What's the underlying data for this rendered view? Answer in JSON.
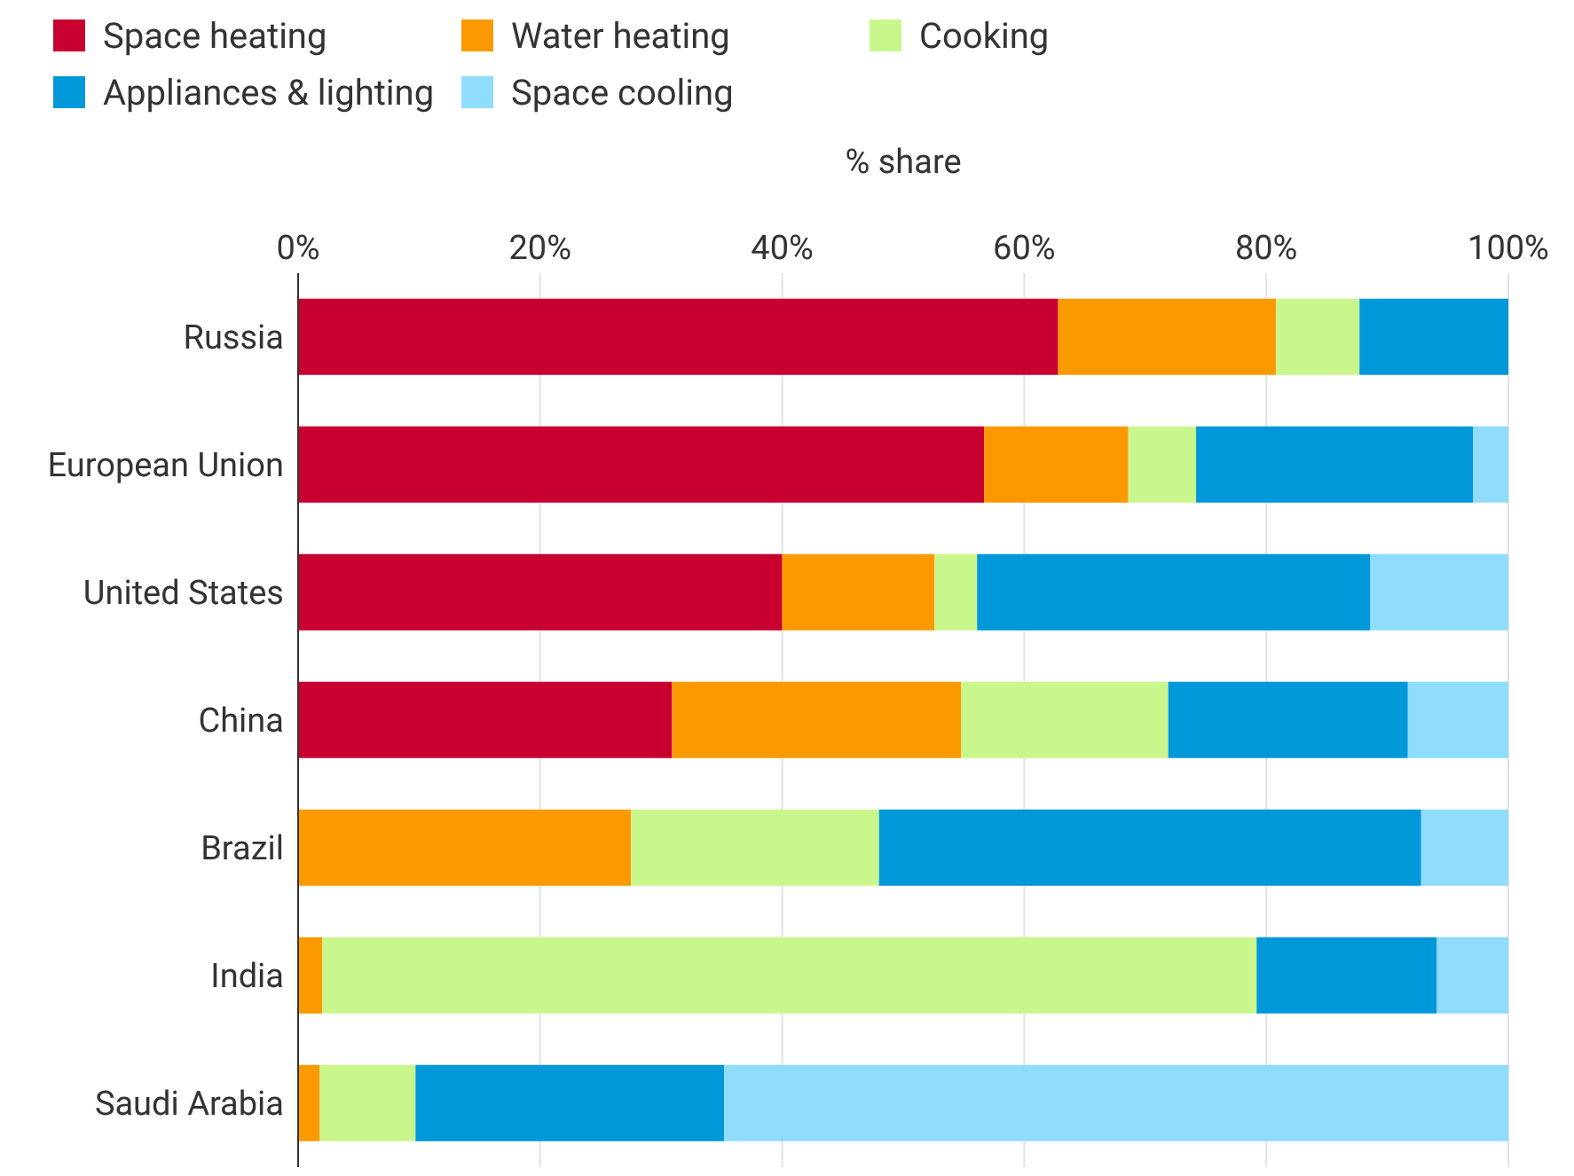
{
  "chart_data": {
    "type": "bar",
    "orientation": "horizontal",
    "stacked": true,
    "xlabel": "% share",
    "categories": [
      "Russia",
      "European Union",
      "United States",
      "China",
      "Brazil",
      "India",
      "Saudi Arabia"
    ],
    "series": [
      {
        "name": "Space heating",
        "color": "#c8002f",
        "values": [
          62.8,
          56.7,
          40.0,
          30.9,
          0,
          0,
          0
        ]
      },
      {
        "name": "Water heating",
        "color": "#fa9a00",
        "values": [
          18.0,
          11.9,
          12.6,
          23.9,
          27.5,
          2.0,
          1.8
        ]
      },
      {
        "name": "Cooking",
        "color": "#c9f78c",
        "values": [
          6.9,
          5.6,
          3.5,
          17.1,
          20.5,
          77.2,
          7.9
        ]
      },
      {
        "name": "Appliances & lighting",
        "color": "#0098d8",
        "values": [
          12.3,
          22.9,
          32.5,
          19.8,
          44.8,
          14.9,
          25.5
        ]
      },
      {
        "name": "Space cooling",
        "color": "#8fdcfc",
        "values": [
          0,
          2.9,
          11.4,
          8.3,
          7.2,
          5.9,
          64.8
        ]
      }
    ],
    "xlim": [
      0,
      100
    ],
    "xticks": [
      {
        "value": 0,
        "label": "0%"
      },
      {
        "value": 20,
        "label": "20%"
      },
      {
        "value": 40,
        "label": "40%"
      },
      {
        "value": 60,
        "label": "60%"
      },
      {
        "value": 80,
        "label": "80%"
      },
      {
        "value": 100,
        "label": "100%"
      }
    ],
    "grid": "x",
    "legend": "top left"
  }
}
